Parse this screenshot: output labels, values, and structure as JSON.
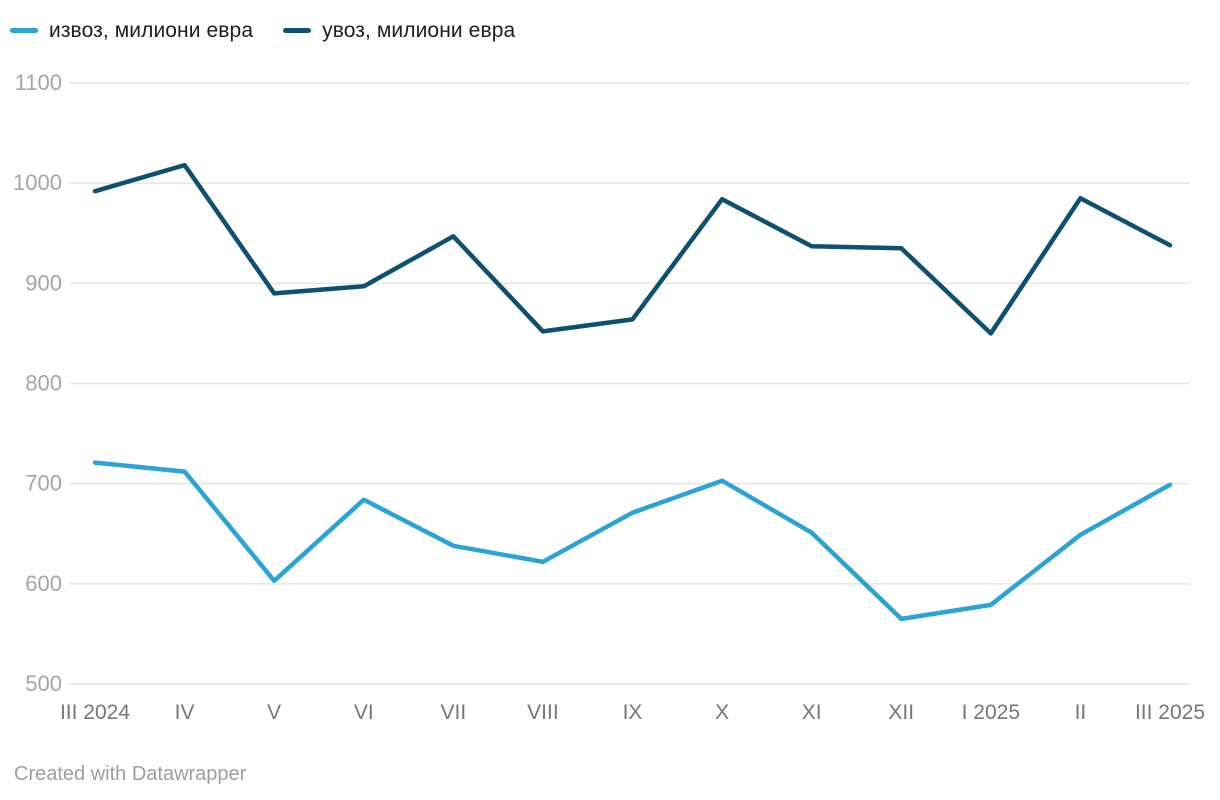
{
  "legend": {
    "items": [
      {
        "label": "извоз, милиони евра"
      },
      {
        "label": "увоз, милиони евра"
      }
    ]
  },
  "chart_data": {
    "type": "line",
    "categories": [
      "III 2024",
      "IV",
      "V",
      "VI",
      "VII",
      "VIII",
      "IX",
      "X",
      "XI",
      "XII",
      "I 2025",
      "II",
      "III 2025"
    ],
    "series": [
      {
        "name": "извоз, милиони евра",
        "color": "#2ba3d7",
        "values": [
          721,
          712,
          603,
          684,
          638,
          622,
          671,
          703,
          651,
          565,
          579,
          649,
          699
        ]
      },
      {
        "name": "увоз, милиони евра",
        "color": "#0e5070",
        "values": [
          992,
          1018,
          890,
          897,
          947,
          852,
          864,
          984,
          937,
          935,
          850,
          985,
          938
        ]
      }
    ],
    "title": "",
    "xlabel": "",
    "ylabel": "",
    "ylim": [
      500,
      1100
    ],
    "yticks": [
      500,
      600,
      700,
      800,
      900,
      1000,
      1100
    ],
    "grid": "horizontal",
    "legend_position": "top-left"
  },
  "style_colors": {
    "gridline": "#e4e4e4",
    "y_tick_label": "#a5a5a5",
    "x_tick_label": "#767676"
  },
  "footer": {
    "credit": "Created with Datawrapper"
  }
}
